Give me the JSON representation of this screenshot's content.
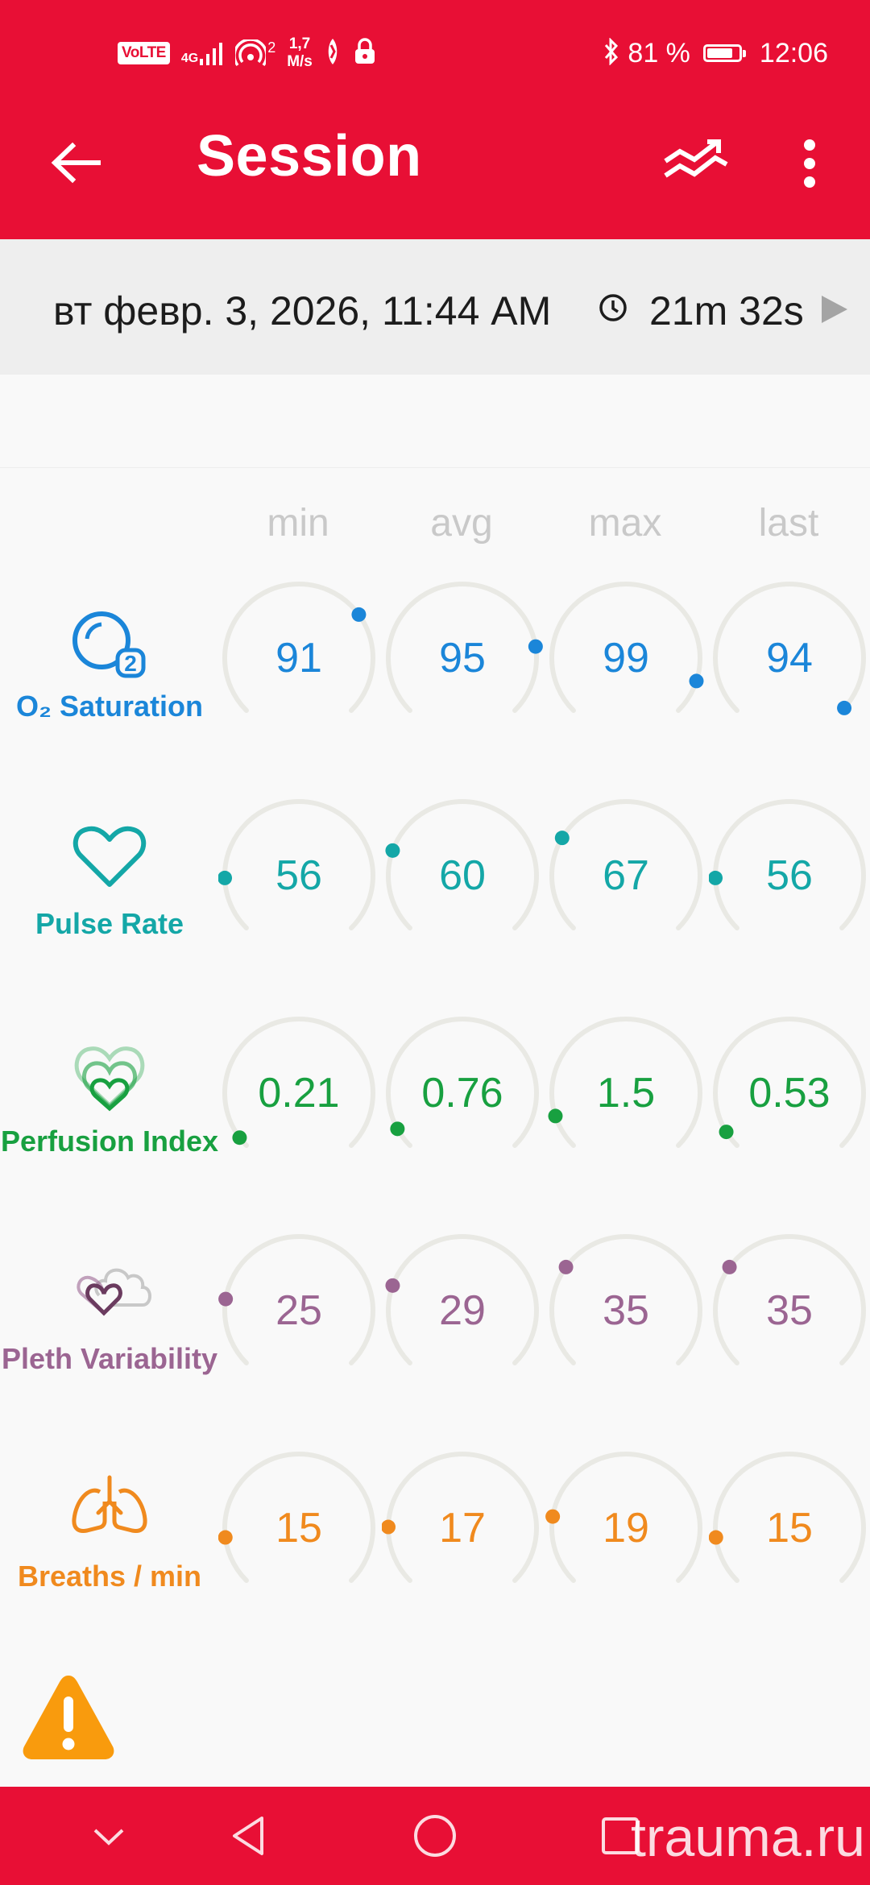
{
  "status_bar": {
    "volte": "VoLTE",
    "signal_type": "4G",
    "hotspot_count": "2",
    "net_speed_value": "1,7",
    "net_speed_unit": "M/s",
    "battery": "81 %",
    "battery_level": 0.81,
    "time": "12:06"
  },
  "app_bar": {
    "title": "Session",
    "back_icon": "arrow-left-icon",
    "trend_icon": "trend-icon",
    "more_icon": "more-vert-icon",
    "background": "#e80f35"
  },
  "session": {
    "date": "вт февр. 3, 2026, 11:44 AM",
    "duration": "21m 32s"
  },
  "columns": [
    "min",
    "avg",
    "max",
    "last"
  ],
  "metrics": [
    {
      "key": "spo2",
      "label": "O₂ Saturation",
      "icon": "o2-saturation-icon",
      "color": "#1b86d9",
      "values": [
        "91",
        "95",
        "99",
        "94"
      ],
      "levels": [
        0.7,
        0.8,
        0.9,
        0.99
      ]
    },
    {
      "key": "pr",
      "label": "Pulse Rate",
      "icon": "heart-icon",
      "color": "#14a7a7",
      "values": [
        "56",
        "60",
        "67",
        "56"
      ],
      "levels": [
        0.16,
        0.24,
        0.28,
        0.16
      ]
    },
    {
      "key": "pi",
      "label": "Perfusion Index",
      "icon": "perfusion-hearts-icon",
      "color": "#18a040",
      "values": [
        "0.21",
        "0.76",
        "1.5",
        "0.53"
      ],
      "levels": [
        0.03,
        0.06,
        0.1,
        0.05
      ]
    },
    {
      "key": "pvi",
      "label": "Pleth Variability",
      "icon": "pleth-variability-icon",
      "color": "#9b6592",
      "values": [
        "25",
        "29",
        "35",
        "35"
      ],
      "levels": [
        0.2,
        0.24,
        0.3,
        0.3
      ]
    },
    {
      "key": "rr",
      "label": "Breaths / min",
      "icon": "lungs-icon",
      "color": "#f08a1e",
      "values": [
        "15",
        "17",
        "19",
        "15"
      ],
      "levels": [
        0.14,
        0.17,
        0.2,
        0.14
      ]
    }
  ],
  "warning_icon": "warning-icon",
  "nav_bar": {
    "icons": [
      "collapse-chevron-icon",
      "back-triangle-icon",
      "home-circle-icon",
      "recents-square-icon"
    ]
  },
  "watermark": "trauma.ru"
}
